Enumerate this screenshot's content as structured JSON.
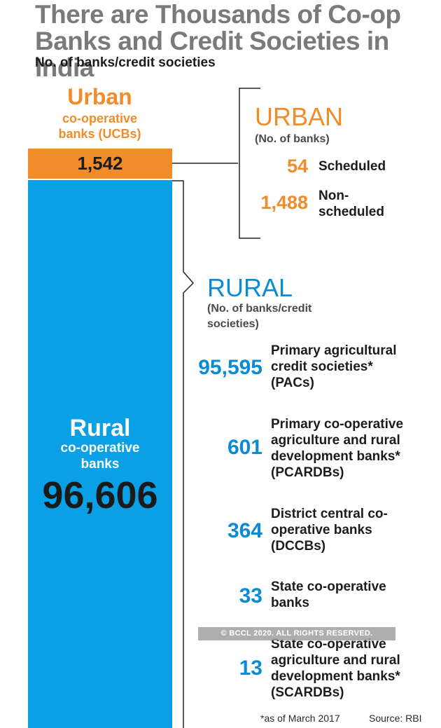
{
  "header": {
    "title": "There are Thousands of Co-op Banks and Credit Societies in India",
    "subtitle": "No. of banks/credit societies"
  },
  "colors": {
    "urban": "#f08c2a",
    "rural": "#0aa0e6",
    "rural_text": "#0a8bd4"
  },
  "chart_data": {
    "type": "bar",
    "categories": [
      "Urban co-operative banks (UCBs)",
      "Rural co-operative banks"
    ],
    "values": [
      1542,
      96606
    ],
    "bars": [
      {
        "name_big": "Urban",
        "name_small": "co-operative banks (UCBs)",
        "value_label": "1,542"
      },
      {
        "name_big": "Rural",
        "name_small": "co-operative banks",
        "value_label": "96,606"
      }
    ],
    "breakdowns": [
      {
        "heading": "URBAN",
        "note": "(No. of banks)",
        "items": [
          {
            "value": "54",
            "label": "Scheduled"
          },
          {
            "value": "1,488",
            "label": "Non-scheduled"
          }
        ]
      },
      {
        "heading": "RURAL",
        "note": "(No. of banks/credit societies)",
        "items": [
          {
            "value": "95,595",
            "label": "Primary agricultural credit societies* (PACs)"
          },
          {
            "value": "601",
            "label": "Primary co-operative agriculture and rural development banks* (PCARDBs)"
          },
          {
            "value": "364",
            "label": "District central co-operative banks (DCCBs)"
          },
          {
            "value": "33",
            "label": "State co-operative banks"
          },
          {
            "value": "13",
            "label": "State co-operative agriculture and rural development banks* (SCARDBs)"
          }
        ]
      }
    ]
  },
  "footer": {
    "watermark": "© BCCL 2020. ALL RIGHTS RESERVED.",
    "footnote": "*as of March 2017",
    "source": "Source: RBI"
  }
}
